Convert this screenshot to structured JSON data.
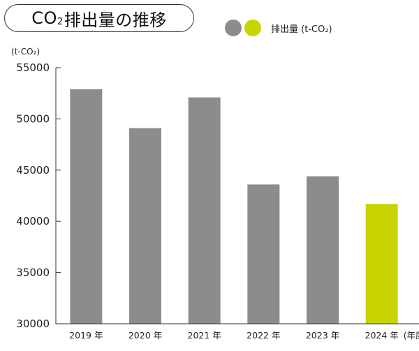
{
  "chart_data": {
    "type": "bar",
    "title_prefix": "CO",
    "title_sub": "2",
    "title_rest": "排出量の推移",
    "unit": "(t-CO₂)",
    "year_unit": "(年度)",
    "legend": {
      "label": "排出量 (t-CO₂)",
      "colors": [
        "#8c8c8c",
        "#c8d400"
      ]
    },
    "categories": [
      "2019 年",
      "2020 年",
      "2021 年",
      "2022 年",
      "2023 年",
      "2024 年"
    ],
    "values": [
      52900,
      49100,
      52100,
      43600,
      44400,
      41700
    ],
    "bar_colors": [
      "#8c8c8c",
      "#8c8c8c",
      "#8c8c8c",
      "#8c8c8c",
      "#8c8c8c",
      "#c8d400"
    ],
    "ylim": [
      30000,
      55000
    ],
    "yticks": [
      30000,
      35000,
      40000,
      45000,
      50000,
      55000
    ]
  }
}
